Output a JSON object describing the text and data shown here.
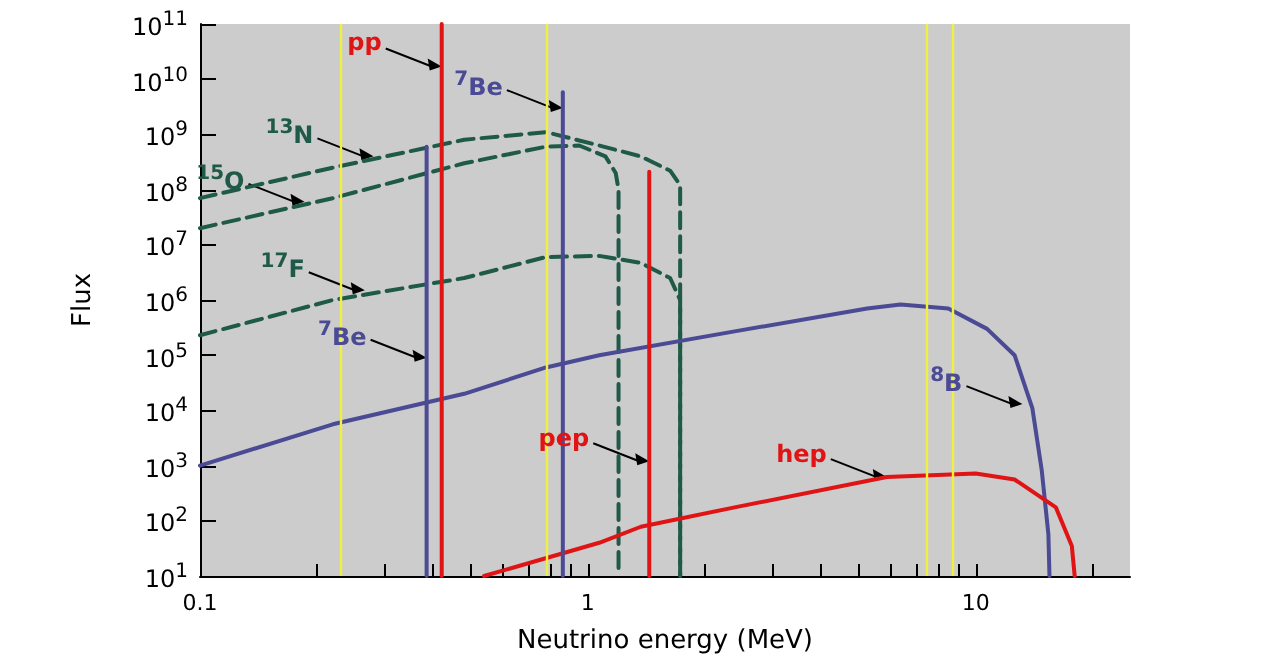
{
  "chart_data": {
    "type": "line",
    "xlabel": "Neutrino energy (MeV)",
    "ylabel": "Flux",
    "log": "xy",
    "xlim": [
      0.1,
      25
    ],
    "ylim": [
      10,
      100000000000
    ],
    "xticks": [
      0.1,
      {
        "value": 0.2,
        "label": null
      },
      {
        "value": 0.3,
        "label": null
      },
      {
        "value": 0.4,
        "label": null
      },
      {
        "value": 0.5,
        "label": null
      },
      {
        "value": 0.6,
        "label": null
      },
      {
        "value": 0.7,
        "label": null
      },
      {
        "value": 0.8,
        "label": null
      },
      {
        "value": 0.9,
        "label": null
      },
      1,
      {
        "value": 2,
        "label": null
      },
      {
        "value": 3,
        "label": null
      },
      {
        "value": 4,
        "label": null
      },
      {
        "value": 5,
        "label": null
      },
      {
        "value": 6,
        "label": null
      },
      {
        "value": 7,
        "label": null
      },
      {
        "value": 8,
        "label": null
      },
      {
        "value": 9,
        "label": null
      },
      10,
      {
        "value": 20,
        "label": null
      }
    ],
    "yticks": [
      {
        "value": 10,
        "label": "10$^{1}$"
      },
      {
        "value": 100,
        "label": "10$^{2}$"
      },
      {
        "value": 1000,
        "label": "10$^{3}$"
      },
      {
        "value": 10000,
        "label": "10$^{4}$"
      },
      {
        "value": 100000,
        "label": "10$^{5}$"
      },
      {
        "value": 1000000,
        "label": "10$^{6}$"
      },
      {
        "value": 10000000,
        "label": "10$^{7}$"
      },
      {
        "value": 100000000,
        "label": "10$^{8}$"
      },
      {
        "value": 1000000000,
        "label": "10$^{9}$"
      },
      {
        "value": 10000000000,
        "label": "10$^{10}$"
      },
      {
        "value": 100000000000,
        "label": "10$^{11}$"
      }
    ],
    "grid": false,
    "marker": "none",
    "line_style": "solid",
    "series": [
      {
        "color": "#1f5a48",
        "line_style": "dashed",
        "x": [
          0.1,
          0.22,
          0.48,
          0.78,
          1.07,
          1.37,
          1.63,
          1.73,
          1.73
        ],
        "values": [
          70000000,
          250000000,
          800000000,
          1100000000,
          630000000,
          400000000,
          220000000,
          120000000,
          10
        ]
      },
      {
        "color": "#1f5a48",
        "line_style": "dashed",
        "x": [
          0.1,
          0.22,
          0.48,
          0.78,
          0.95,
          1.11,
          1.18,
          1.2,
          1.2
        ],
        "values": [
          20000000,
          70000000,
          300000000,
          600000000,
          630000000,
          400000000,
          200000000,
          100000000,
          10
        ]
      },
      {
        "color": "#1f5a48",
        "line_style": "dashed",
        "x": [
          0.1,
          0.22,
          0.48,
          0.78,
          1.07,
          1.37,
          1.63,
          1.73,
          1.73
        ],
        "values": [
          230000,
          1000000,
          2500000,
          6000000,
          6300000,
          4700000,
          2500000,
          1000000,
          10
        ]
      },
      {
        "color": "#4b4a94",
        "x": [
          0.1,
          0.22,
          0.48,
          0.78,
          1.07,
          2.39,
          5.25,
          6.4,
          8.5,
          10.7,
          12.6,
          14,
          14.8,
          15.4,
          15.5
        ],
        "values": [
          1000,
          5600,
          20000,
          60000,
          100000,
          270000,
          700000,
          830000,
          700000,
          300000,
          100000,
          11000,
          830,
          57,
          10
        ]
      },
      {
        "color": "#e01414",
        "x": [
          0.54,
          1.07,
          1.37,
          2.39,
          5.9,
          10,
          12.6,
          16.1,
          17.7,
          18
        ],
        "values": [
          10,
          40,
          78,
          175,
          620,
          720,
          560,
          175,
          35,
          10
        ]
      },
      {
        "color": "#4b4a94",
        "x": [
          0.384,
          0.384
        ],
        "values": [
          10,
          600000000
        ]
      },
      {
        "color": "#e01414",
        "x": [
          0.42,
          0.42
        ],
        "values": [
          10,
          100000000000
        ]
      },
      {
        "color": "#4b4a94",
        "x": [
          0.862,
          0.862
        ],
        "values": [
          10,
          5800000000
        ]
      },
      {
        "color": "#e01414",
        "x": [
          1.44,
          1.44
        ],
        "values": [
          10,
          210000000
        ]
      }
    ],
    "ref_lines": [
      {
        "axis": "x",
        "value": 0.225,
        "label": null,
        "color": "#f0f040"
      },
      {
        "axis": "x",
        "value": 0.78,
        "label": null,
        "color": "#f0f040"
      },
      {
        "axis": "x",
        "value": 7.5,
        "label": null,
        "color": "#f0f040"
      },
      {
        "axis": "x",
        "value": 8.7,
        "label": null,
        "color": "#f0f040"
      }
    ],
    "annotations": [
      {
        "text": "pp",
        "x": 0.42,
        "y": 17000000000
      },
      {
        "text": "$^{7}$Be",
        "x": 0.862,
        "y": 3000000000
      },
      {
        "text": "$^{13}$N",
        "x": 0.28,
        "y": 400000000
      },
      {
        "text": "$^{15}$O",
        "x": 0.186,
        "y": 60000000
      },
      {
        "text": "$^{17}$F",
        "x": 0.266,
        "y": 1500000
      },
      {
        "text": "$^{7}$Be",
        "x": 0.384,
        "y": 90000
      },
      {
        "text": "pep",
        "x": 1.44,
        "y": 1200
      },
      {
        "text": "hep",
        "x": 5.9,
        "y": 620
      },
      {
        "text": "$^{8}$B",
        "x": 13.2,
        "y": 13000
      }
    ]
  }
}
